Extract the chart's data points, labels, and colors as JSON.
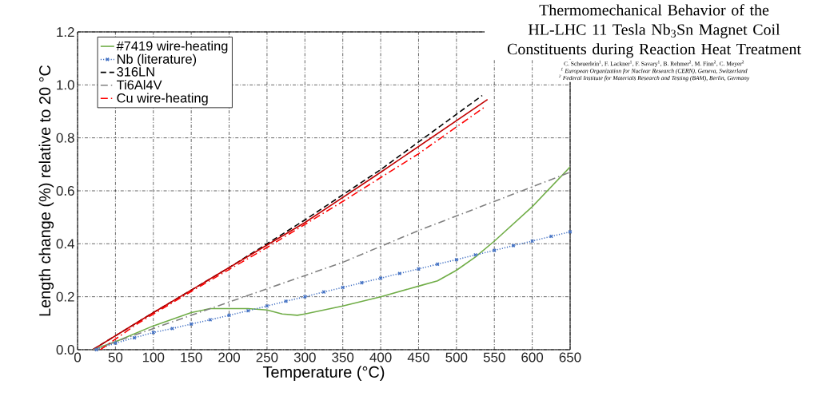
{
  "chart_data": {
    "type": "line",
    "title": "Thermomechanical Behavior of the HL-LHC 11 Tesla Nb$_{3}$Sn Magnet Coil Constituents during Reaction Heat Treatment",
    "subtitle": "C. Scheuerlein$^{1}$, F. Lackner$^{1}$, F. Savary$^{1}$, B. Rehmer$^{2}$, M. Finn$^{2}$, C. Meyer$^{2}$",
    "annotations": [
      "$^{1}$ European Organization for Nuclear Research (CERN), Geneva, Switzerland",
      "$^{2}$ Federal Institute for Materials Research and Testing (BAM), Berlin, Germany"
    ],
    "xlabel": "Temperature (°C)",
    "ylabel": "Length change (%) relative to 20 °C",
    "xlim": [
      0,
      650
    ],
    "ylim": [
      0,
      1.2
    ],
    "xticks": [
      0,
      50,
      100,
      150,
      200,
      250,
      300,
      350,
      400,
      450,
      500,
      550,
      600,
      650
    ],
    "yticks": [
      {
        "value": 0,
        "label": "0.0"
      },
      {
        "value": 0.2,
        "label": "0.2"
      },
      {
        "value": 0.4,
        "label": "0.4"
      },
      {
        "value": 0.6,
        "label": "0.6"
      },
      {
        "value": 0.8,
        "label": "0.8"
      },
      {
        "value": 1.0,
        "label": "1.0"
      },
      {
        "value": 1.2,
        "label": "1.2"
      }
    ],
    "grid": true,
    "legend": "top left",
    "series": [
      {
        "name": "#7419 wire-heating",
        "color": "#70ad47",
        "line_style": "solid",
        "marker": "none",
        "x": [
          20,
          50,
          100,
          150,
          175,
          200,
          225,
          250,
          270,
          290,
          300,
          350,
          400,
          450,
          475,
          500,
          525,
          550,
          600,
          650
        ],
        "values": [
          0,
          0.03,
          0.09,
          0.14,
          0.155,
          0.155,
          0.155,
          0.15,
          0.135,
          0.13,
          0.135,
          0.165,
          0.2,
          0.24,
          0.26,
          0.3,
          0.35,
          0.41,
          0.54,
          0.69
        ]
      },
      {
        "name": "Nb (literature)",
        "color": "#4472c4",
        "line_style": "dotted",
        "marker": "cross",
        "x": [
          25,
          50,
          75,
          100,
          125,
          150,
          175,
          200,
          225,
          250,
          275,
          300,
          325,
          350,
          375,
          400,
          425,
          450,
          475,
          500,
          525,
          550,
          575,
          600,
          625,
          650
        ],
        "values": [
          0.0,
          0.025,
          0.045,
          0.065,
          0.08,
          0.097,
          0.113,
          0.13,
          0.147,
          0.165,
          0.183,
          0.2,
          0.218,
          0.235,
          0.253,
          0.27,
          0.288,
          0.305,
          0.323,
          0.34,
          0.358,
          0.375,
          0.393,
          0.41,
          0.428,
          0.445
        ]
      },
      {
        "name": "316LN",
        "color": "#000000",
        "line_style": "dashed",
        "marker": "none",
        "x": [
          20,
          100,
          200,
          300,
          400,
          534
        ],
        "values": [
          0,
          0.14,
          0.31,
          0.49,
          0.68,
          0.96
        ]
      },
      {
        "color": "#c00000",
        "line_style": "solid",
        "marker": "none",
        "x": [
          20,
          100,
          200,
          300,
          400,
          541
        ],
        "values": [
          0,
          0.14,
          0.31,
          0.48,
          0.67,
          0.945
        ]
      },
      {
        "name": "Ti6Al4V",
        "color": "#808080",
        "line_style": "dashdot",
        "marker": "none",
        "x": [
          20,
          150,
          250,
          350,
          450,
          550,
          650
        ],
        "values": [
          0,
          0.13,
          0.23,
          0.33,
          0.45,
          0.56,
          0.67
        ]
      },
      {
        "name": "Cu wire-heating",
        "color": "#ff0000",
        "line_style": "dashdot",
        "marker": "none",
        "x": [
          30,
          80,
          150,
          250,
          350,
          450,
          539
        ],
        "values": [
          0,
          0.1,
          0.22,
          0.386,
          0.56,
          0.74,
          0.92
        ]
      }
    ]
  }
}
